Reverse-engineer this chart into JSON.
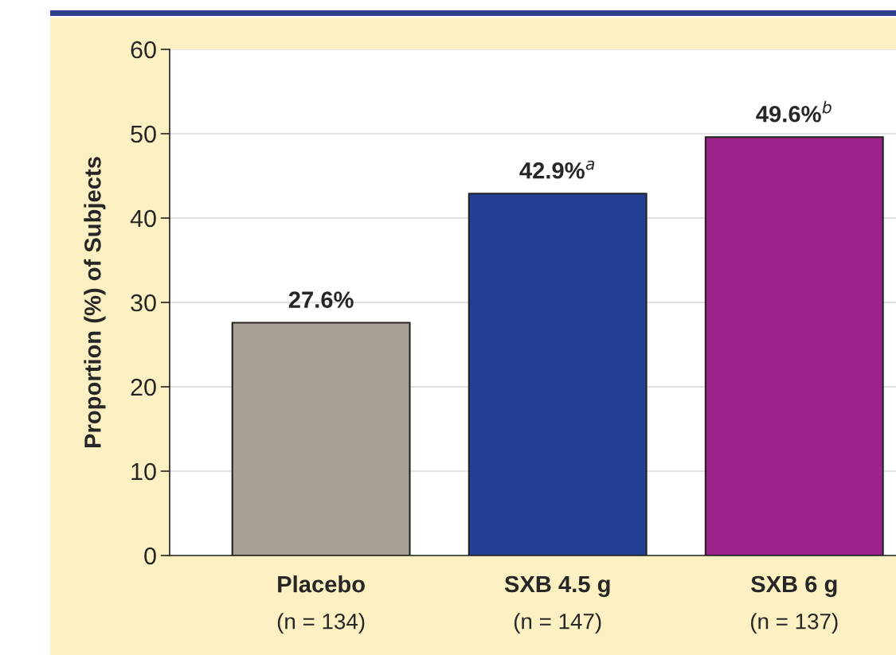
{
  "chart_data": {
    "type": "bar",
    "ylabel": "Proportion (%) of Subjects",
    "categories": [
      "Placebo\n(n = 134)",
      "SXB 4.5 g\n(n = 147)",
      "SXB 6 g\n(n = 137)"
    ],
    "values": [
      27.6,
      42.9,
      49.6
    ],
    "colors": [
      "#aaa297",
      "#233f96",
      "#9c218a"
    ],
    "value_labels": [
      "27.6%",
      "42.9%$^{a}$",
      "49.6%$^{b}$"
    ],
    "ylim": [
      0,
      60
    ],
    "yticks": [
      0,
      10,
      20,
      30,
      40,
      50,
      60
    ],
    "grid": "y"
  }
}
